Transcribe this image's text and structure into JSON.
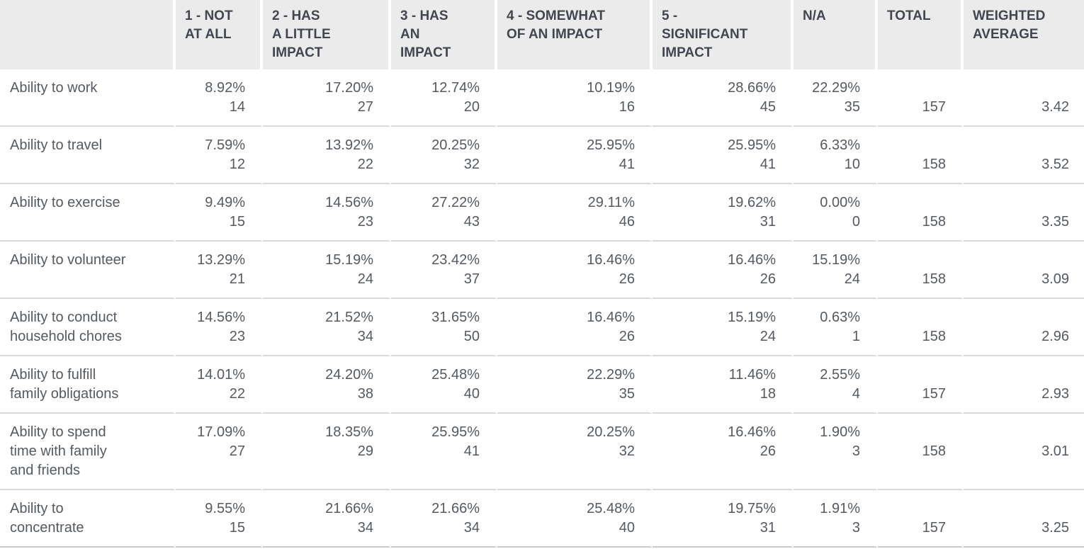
{
  "table": {
    "headers": [
      "",
      "1 - NOT\nAT ALL",
      "2 - HAS\nA LITTLE\nIMPACT",
      "3 - HAS\nAN\nIMPACT",
      "4 - SOMEWHAT\nOF AN IMPACT",
      "5 -\nSIGNIFICANT\nIMPACT",
      "N/A",
      "TOTAL",
      "WEIGHTED\nAVERAGE"
    ],
    "rows": [
      {
        "label": "Ability to work",
        "cells": [
          {
            "pct": "8.92%",
            "n": "14"
          },
          {
            "pct": "17.20%",
            "n": "27"
          },
          {
            "pct": "12.74%",
            "n": "20"
          },
          {
            "pct": "10.19%",
            "n": "16"
          },
          {
            "pct": "28.66%",
            "n": "45"
          },
          {
            "pct": "22.29%",
            "n": "35"
          }
        ],
        "total": "157",
        "avg": "3.42"
      },
      {
        "label": "Ability to travel",
        "cells": [
          {
            "pct": "7.59%",
            "n": "12"
          },
          {
            "pct": "13.92%",
            "n": "22"
          },
          {
            "pct": "20.25%",
            "n": "32"
          },
          {
            "pct": "25.95%",
            "n": "41"
          },
          {
            "pct": "25.95%",
            "n": "41"
          },
          {
            "pct": "6.33%",
            "n": "10"
          }
        ],
        "total": "158",
        "avg": "3.52"
      },
      {
        "label": "Ability to exercise",
        "cells": [
          {
            "pct": "9.49%",
            "n": "15"
          },
          {
            "pct": "14.56%",
            "n": "23"
          },
          {
            "pct": "27.22%",
            "n": "43"
          },
          {
            "pct": "29.11%",
            "n": "46"
          },
          {
            "pct": "19.62%",
            "n": "31"
          },
          {
            "pct": "0.00%",
            "n": "0"
          }
        ],
        "total": "158",
        "avg": "3.35"
      },
      {
        "label": "Ability to volunteer",
        "cells": [
          {
            "pct": "13.29%",
            "n": "21"
          },
          {
            "pct": "15.19%",
            "n": "24"
          },
          {
            "pct": "23.42%",
            "n": "37"
          },
          {
            "pct": "16.46%",
            "n": "26"
          },
          {
            "pct": "16.46%",
            "n": "26"
          },
          {
            "pct": "15.19%",
            "n": "24"
          }
        ],
        "total": "158",
        "avg": "3.09"
      },
      {
        "label": "Ability to conduct\nhousehold chores",
        "cells": [
          {
            "pct": "14.56%",
            "n": "23"
          },
          {
            "pct": "21.52%",
            "n": "34"
          },
          {
            "pct": "31.65%",
            "n": "50"
          },
          {
            "pct": "16.46%",
            "n": "26"
          },
          {
            "pct": "15.19%",
            "n": "24"
          },
          {
            "pct": "0.63%",
            "n": "1"
          }
        ],
        "total": "158",
        "avg": "2.96"
      },
      {
        "label": "Ability to fulfill\nfamily obligations",
        "cells": [
          {
            "pct": "14.01%",
            "n": "22"
          },
          {
            "pct": "24.20%",
            "n": "38"
          },
          {
            "pct": "25.48%",
            "n": "40"
          },
          {
            "pct": "22.29%",
            "n": "35"
          },
          {
            "pct": "11.46%",
            "n": "18"
          },
          {
            "pct": "2.55%",
            "n": "4"
          }
        ],
        "total": "157",
        "avg": "2.93"
      },
      {
        "label": "Ability to spend\ntime with family\nand friends",
        "cells": [
          {
            "pct": "17.09%",
            "n": "27"
          },
          {
            "pct": "18.35%",
            "n": "29"
          },
          {
            "pct": "25.95%",
            "n": "41"
          },
          {
            "pct": "20.25%",
            "n": "32"
          },
          {
            "pct": "16.46%",
            "n": "26"
          },
          {
            "pct": "1.90%",
            "n": "3"
          }
        ],
        "total": "158",
        "avg": "3.01"
      },
      {
        "label": "Ability to\nconcentrate",
        "cells": [
          {
            "pct": "9.55%",
            "n": "15"
          },
          {
            "pct": "21.66%",
            "n": "34"
          },
          {
            "pct": "21.66%",
            "n": "34"
          },
          {
            "pct": "25.48%",
            "n": "40"
          },
          {
            "pct": "19.75%",
            "n": "31"
          },
          {
            "pct": "1.91%",
            "n": "3"
          }
        ],
        "total": "157",
        "avg": "3.25"
      }
    ]
  },
  "chart_data": {
    "type": "table",
    "title": "",
    "columns": [
      "1 - NOT AT ALL",
      "2 - HAS A LITTLE IMPACT",
      "3 - HAS AN IMPACT",
      "4 - SOMEWHAT OF AN IMPACT",
      "5 - SIGNIFICANT IMPACT",
      "N/A",
      "TOTAL",
      "WEIGHTED AVERAGE"
    ],
    "rows": [
      {
        "label": "Ability to work",
        "percents": [
          8.92,
          17.2,
          12.74,
          10.19,
          28.66,
          22.29
        ],
        "counts": [
          14,
          27,
          20,
          16,
          45,
          35
        ],
        "total": 157,
        "weighted_average": 3.42
      },
      {
        "label": "Ability to travel",
        "percents": [
          7.59,
          13.92,
          20.25,
          25.95,
          25.95,
          6.33
        ],
        "counts": [
          12,
          22,
          32,
          41,
          41,
          10
        ],
        "total": 158,
        "weighted_average": 3.52
      },
      {
        "label": "Ability to exercise",
        "percents": [
          9.49,
          14.56,
          27.22,
          29.11,
          19.62,
          0.0
        ],
        "counts": [
          15,
          23,
          43,
          46,
          31,
          0
        ],
        "total": 158,
        "weighted_average": 3.35
      },
      {
        "label": "Ability to volunteer",
        "percents": [
          13.29,
          15.19,
          23.42,
          16.46,
          16.46,
          15.19
        ],
        "counts": [
          21,
          24,
          37,
          26,
          26,
          24
        ],
        "total": 158,
        "weighted_average": 3.09
      },
      {
        "label": "Ability to conduct household chores",
        "percents": [
          14.56,
          21.52,
          31.65,
          16.46,
          15.19,
          0.63
        ],
        "counts": [
          23,
          34,
          50,
          26,
          24,
          1
        ],
        "total": 158,
        "weighted_average": 2.96
      },
      {
        "label": "Ability to fulfill family obligations",
        "percents": [
          14.01,
          24.2,
          25.48,
          22.29,
          11.46,
          2.55
        ],
        "counts": [
          22,
          38,
          40,
          35,
          18,
          4
        ],
        "total": 157,
        "weighted_average": 2.93
      },
      {
        "label": "Ability to spend time with family and friends",
        "percents": [
          17.09,
          18.35,
          25.95,
          20.25,
          16.46,
          1.9
        ],
        "counts": [
          27,
          29,
          41,
          32,
          26,
          3
        ],
        "total": 158,
        "weighted_average": 3.01
      },
      {
        "label": "Ability to concentrate",
        "percents": [
          9.55,
          21.66,
          21.66,
          25.48,
          19.75,
          1.91
        ],
        "counts": [
          15,
          34,
          34,
          40,
          31,
          3
        ],
        "total": 157,
        "weighted_average": 3.25
      }
    ],
    "colors": {
      "header_background": "#ebebeb",
      "header_text": "#42474f",
      "body_text": "#555a62",
      "row_divider": "#d9d9d9"
    }
  }
}
